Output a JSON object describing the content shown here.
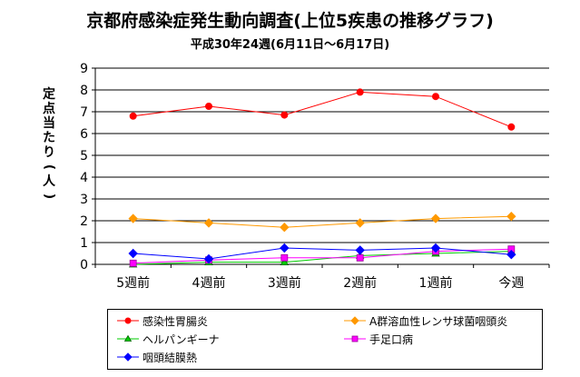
{
  "chart_data": {
    "type": "line",
    "title": "京都府感染症発生動向調査(上位5疾患の推移グラフ)",
    "subtitle": "平成30年24週(6月11日～6月17日)",
    "ylabel": "定点当たり(人)",
    "xlabel": "",
    "categories": [
      "5週前",
      "4週前",
      "3週前",
      "2週前",
      "1週前",
      "今週"
    ],
    "ylim": [
      0,
      9
    ],
    "yticks": [
      0,
      1,
      2,
      3,
      4,
      5,
      6,
      7,
      8,
      9
    ],
    "grid": true,
    "legend_position": "bottom",
    "series": [
      {
        "name": "感染性胃腸炎",
        "values": [
          6.8,
          7.25,
          6.85,
          7.9,
          7.7,
          6.3
        ],
        "color": "#ff0000",
        "marker": "circle"
      },
      {
        "name": "A群溶血性レンサ球菌咽頭炎",
        "values": [
          2.1,
          1.9,
          1.7,
          1.9,
          2.1,
          2.2
        ],
        "color": "#ff9900",
        "marker": "diamond"
      },
      {
        "name": "ヘルパンギーナ",
        "values": [
          0.0,
          0.1,
          0.1,
          0.4,
          0.5,
          0.6
        ],
        "color": "#00cc00",
        "marker": "triangle"
      },
      {
        "name": "手足口病",
        "values": [
          0.05,
          0.2,
          0.3,
          0.3,
          0.6,
          0.7
        ],
        "color": "#ff00ff",
        "marker": "square"
      },
      {
        "name": "咽頭結膜熱",
        "values": [
          0.5,
          0.25,
          0.75,
          0.65,
          0.75,
          0.45
        ],
        "color": "#0000ff",
        "marker": "diamond"
      }
    ]
  }
}
